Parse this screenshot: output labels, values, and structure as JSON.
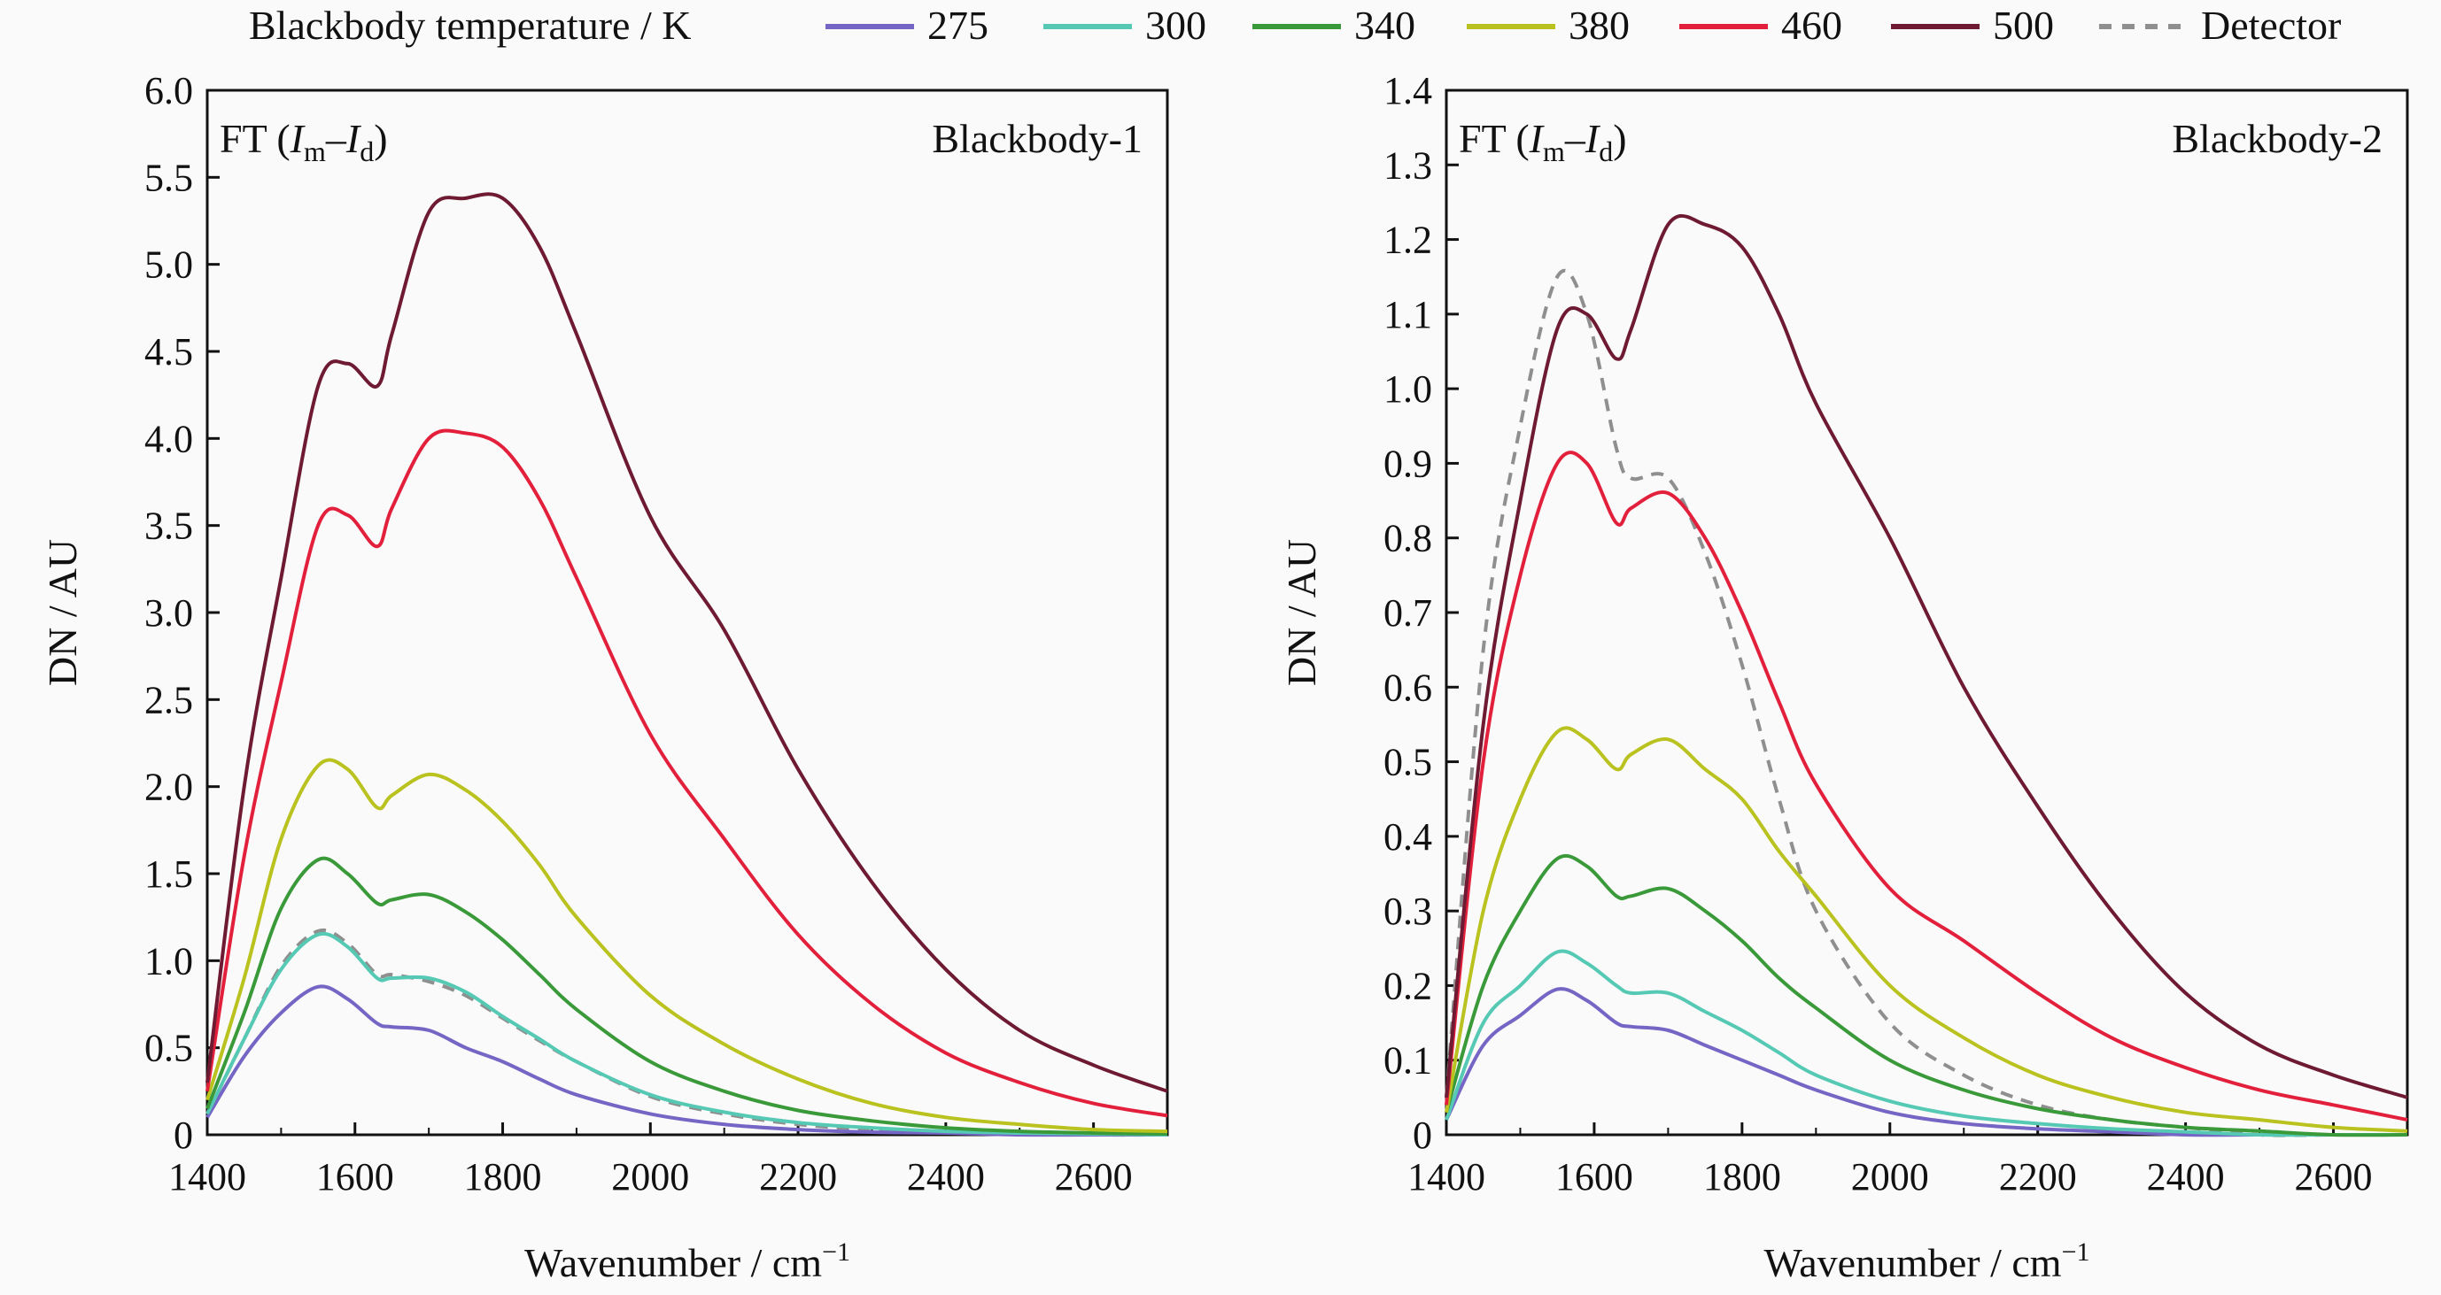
{
  "legend": {
    "title": "Blackbody temperature / K",
    "items": [
      {
        "label": "275",
        "color": "#7565c4",
        "dash": false
      },
      {
        "label": "300",
        "color": "#55c9b4",
        "dash": false
      },
      {
        "label": "340",
        "color": "#3a9a3a",
        "dash": false
      },
      {
        "label": "380",
        "color": "#b9c21e",
        "dash": false
      },
      {
        "label": "460",
        "color": "#e3203c",
        "dash": false
      },
      {
        "label": "500",
        "color": "#6e1a32",
        "dash": false
      },
      {
        "label": "Detector",
        "color": "#8f8f8f",
        "dash": true
      }
    ]
  },
  "chart_data": [
    {
      "type": "line",
      "title": "Blackbody-1",
      "annotation": {
        "prefix": "FT (",
        "i1": "I",
        "s1": "m",
        "dash": "–",
        "i2": "I",
        "s2": "d",
        "suffix": ")"
      },
      "xlabel": "Wavenumber / cm",
      "xlabel_sup": "−1",
      "ylabel": "DN / AU",
      "xlim": [
        1400,
        2700
      ],
      "ylim": [
        0,
        6.0
      ],
      "xticks": [
        "1400",
        "1600",
        "1800",
        "2000",
        "2200",
        "2400",
        "2600"
      ],
      "yticks": [
        "0",
        "0.5",
        "1.0",
        "1.5",
        "2.0",
        "2.5",
        "3.0",
        "3.5",
        "4.0",
        "4.5",
        "5.0",
        "5.5",
        "6.0"
      ],
      "grid": false,
      "x": [
        1400,
        1450,
        1500,
        1550,
        1590,
        1630,
        1650,
        1700,
        1750,
        1800,
        1850,
        1900,
        2000,
        2100,
        2200,
        2300,
        2400,
        2500,
        2600,
        2700
      ],
      "series": [
        {
          "name": "275",
          "values": [
            0.1,
            0.45,
            0.7,
            0.85,
            0.78,
            0.64,
            0.62,
            0.6,
            0.5,
            0.42,
            0.32,
            0.23,
            0.12,
            0.06,
            0.03,
            0.015,
            0.01,
            0,
            0,
            0
          ]
        },
        {
          "name": "300",
          "values": [
            0.12,
            0.55,
            0.95,
            1.15,
            1.08,
            0.9,
            0.9,
            0.9,
            0.82,
            0.68,
            0.55,
            0.42,
            0.23,
            0.13,
            0.07,
            0.04,
            0.02,
            0.01,
            0.005,
            0
          ]
        },
        {
          "name": "340",
          "values": [
            0.15,
            0.7,
            1.3,
            1.58,
            1.5,
            1.33,
            1.35,
            1.38,
            1.28,
            1.12,
            0.92,
            0.72,
            0.42,
            0.25,
            0.14,
            0.08,
            0.04,
            0.02,
            0.01,
            0.005
          ]
        },
        {
          "name": "380",
          "values": [
            0.2,
            0.9,
            1.7,
            2.12,
            2.1,
            1.88,
            1.95,
            2.07,
            1.98,
            1.8,
            1.55,
            1.25,
            0.8,
            0.52,
            0.32,
            0.18,
            0.1,
            0.06,
            0.03,
            0.02
          ]
        },
        {
          "name": "460",
          "values": [
            0.25,
            1.6,
            2.6,
            3.5,
            3.56,
            3.38,
            3.6,
            4.0,
            4.03,
            3.95,
            3.65,
            3.2,
            2.3,
            1.7,
            1.15,
            0.75,
            0.47,
            0.3,
            0.18,
            0.11
          ]
        },
        {
          "name": "500",
          "values": [
            0.3,
            2.0,
            3.2,
            4.3,
            4.43,
            4.3,
            4.6,
            5.3,
            5.38,
            5.38,
            5.1,
            4.6,
            3.55,
            2.9,
            2.1,
            1.45,
            0.95,
            0.6,
            0.4,
            0.25
          ]
        },
        {
          "name": "Detector",
          "values": [
            0.12,
            0.55,
            0.97,
            1.17,
            1.1,
            0.92,
            0.92,
            0.88,
            0.8,
            0.67,
            0.54,
            0.42,
            0.22,
            0.12,
            0.06,
            0.03,
            0.015,
            0.005,
            0,
            0
          ]
        }
      ]
    },
    {
      "type": "line",
      "title": "Blackbody-2",
      "annotation": {
        "prefix": "FT (",
        "i1": "I",
        "s1": "m",
        "dash": "–",
        "i2": "I",
        "s2": "d",
        "suffix": ")"
      },
      "xlabel": "Wavenumber / cm",
      "xlabel_sup": "−1",
      "ylabel": "DN / AU",
      "xlim": [
        1400,
        2700
      ],
      "ylim": [
        0,
        1.4
      ],
      "xticks": [
        "1400",
        "1600",
        "1800",
        "2000",
        "2200",
        "2400",
        "2600"
      ],
      "yticks": [
        "0",
        "0.1",
        "0.2",
        "0.3",
        "0.4",
        "0.5",
        "0.6",
        "0.7",
        "0.8",
        "0.9",
        "1.0",
        "1.1",
        "1.2",
        "1.3",
        "1.4"
      ],
      "grid": false,
      "x": [
        1400,
        1450,
        1500,
        1550,
        1590,
        1630,
        1650,
        1700,
        1750,
        1800,
        1850,
        1900,
        2000,
        2100,
        2200,
        2300,
        2400,
        2500,
        2600,
        2700
      ],
      "series": [
        {
          "name": "275",
          "values": [
            0.02,
            0.12,
            0.16,
            0.195,
            0.18,
            0.15,
            0.145,
            0.14,
            0.12,
            0.1,
            0.08,
            0.06,
            0.03,
            0.015,
            0.008,
            0.004,
            0,
            0,
            0,
            0
          ]
        },
        {
          "name": "300",
          "values": [
            0.02,
            0.15,
            0.2,
            0.245,
            0.23,
            0.2,
            0.19,
            0.19,
            0.165,
            0.14,
            0.11,
            0.08,
            0.045,
            0.025,
            0.015,
            0.008,
            0.004,
            0,
            0,
            0
          ]
        },
        {
          "name": "340",
          "values": [
            0.03,
            0.2,
            0.3,
            0.37,
            0.36,
            0.32,
            0.32,
            0.33,
            0.3,
            0.26,
            0.21,
            0.17,
            0.1,
            0.06,
            0.035,
            0.02,
            0.01,
            0.005,
            0,
            0
          ]
        },
        {
          "name": "380",
          "values": [
            0.03,
            0.3,
            0.45,
            0.54,
            0.53,
            0.49,
            0.51,
            0.53,
            0.49,
            0.45,
            0.38,
            0.32,
            0.2,
            0.13,
            0.08,
            0.05,
            0.03,
            0.02,
            0.01,
            0.005
          ]
        },
        {
          "name": "460",
          "values": [
            0.04,
            0.5,
            0.75,
            0.9,
            0.9,
            0.82,
            0.84,
            0.86,
            0.8,
            0.7,
            0.58,
            0.47,
            0.33,
            0.26,
            0.19,
            0.13,
            0.09,
            0.06,
            0.04,
            0.02
          ]
        },
        {
          "name": "500",
          "values": [
            0.05,
            0.55,
            0.85,
            1.08,
            1.1,
            1.04,
            1.08,
            1.22,
            1.22,
            1.19,
            1.1,
            0.98,
            0.8,
            0.6,
            0.44,
            0.3,
            0.19,
            0.12,
            0.08,
            0.05
          ]
        },
        {
          "name": "Detector",
          "values": [
            0.05,
            0.65,
            0.95,
            1.15,
            1.1,
            0.92,
            0.88,
            0.88,
            0.78,
            0.63,
            0.45,
            0.3,
            0.15,
            0.08,
            0.04,
            0.02,
            0.01,
            0,
            0,
            0
          ]
        }
      ]
    }
  ]
}
